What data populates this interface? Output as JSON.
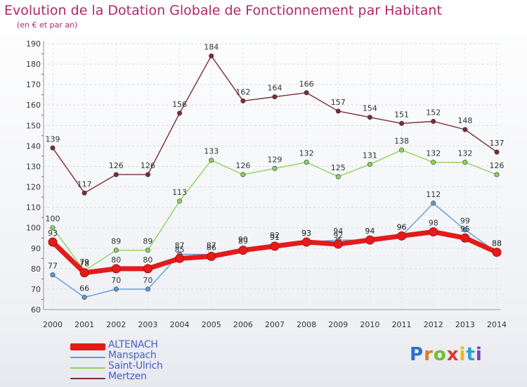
{
  "header": {
    "title": "Evolution de la Dotation Globale de Fonctionnement par Habitant",
    "subtitle": "(en € et par an)"
  },
  "logo": {
    "letters": [
      "P",
      "r",
      "o",
      "x",
      "i",
      "t",
      "i"
    ],
    "colors": [
      "#2d6fcf",
      "#e07a1e",
      "#6cbf2e",
      "#e03a2e",
      "#f0b800",
      "#2d9fd8",
      "#7c3fb0"
    ]
  },
  "chart_data": {
    "type": "line",
    "title": "Evolution de la Dotation Globale de Fonctionnement par Habitant",
    "subtitle": "(en € et par an)",
    "xlabel": "",
    "ylabel": "",
    "x": [
      "2000",
      "2001",
      "2002",
      "2003",
      "2004",
      "2005",
      "2006",
      "2007",
      "2008",
      "2009",
      "2010",
      "2011",
      "2012",
      "2013",
      "2014"
    ],
    "ylim": [
      60,
      190
    ],
    "yticks": [
      60,
      70,
      80,
      90,
      100,
      110,
      120,
      130,
      140,
      150,
      160,
      170,
      180,
      190
    ],
    "grid": true,
    "legend_position": "bottom-left",
    "series": [
      {
        "name": "ALTENACH",
        "color": "#e31b1b",
        "values": [
          93,
          78,
          80,
          80,
          85,
          86,
          89,
          91,
          93,
          92,
          94,
          96,
          98,
          95,
          88
        ]
      },
      {
        "name": "Manspach",
        "color": "#5b9bd5",
        "values": [
          77,
          66,
          70,
          70,
          87,
          87,
          90,
          92,
          93,
          94,
          94,
          96,
          112,
          99,
          88
        ]
      },
      {
        "name": "Saint-Ulrich",
        "color": "#8fd45a",
        "values": [
          100,
          79,
          89,
          89,
          113,
          133,
          126,
          129,
          132,
          125,
          131,
          138,
          132,
          132,
          126
        ]
      },
      {
        "name": "Mertzen",
        "color": "#7b2e35",
        "values": [
          139,
          117,
          126,
          126,
          156,
          184,
          162,
          164,
          166,
          157,
          154,
          151,
          152,
          148,
          137
        ]
      }
    ]
  }
}
